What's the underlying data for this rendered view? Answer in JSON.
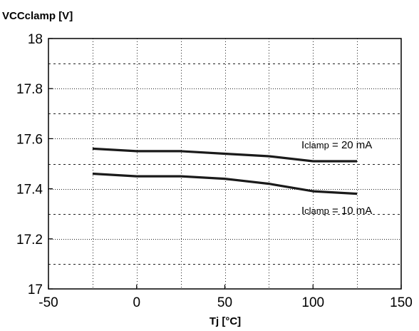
{
  "chart_data": {
    "type": "line",
    "ylabel": "VCCclamp [V]",
    "xlabel": "Tj [°C]",
    "xlim": [
      -50,
      150
    ],
    "ylim": [
      17,
      18
    ],
    "x_ticks": [
      -50,
      0,
      50,
      100,
      150
    ],
    "x_tick_labels": [
      "-50",
      "0",
      "50",
      "100",
      "150"
    ],
    "y_ticks": [
      17,
      17.2,
      17.4,
      17.6,
      17.8,
      18
    ],
    "y_tick_labels": [
      "17",
      "17.2",
      "17.4",
      "17.6",
      "17.8",
      "18"
    ],
    "grid": true,
    "series": [
      {
        "name": "Iclamp = 20 mA",
        "x": [
          -25,
          0,
          25,
          50,
          75,
          100,
          125
        ],
        "values": [
          17.56,
          17.55,
          17.55,
          17.54,
          17.53,
          17.51,
          17.51
        ]
      },
      {
        "name": "Iclamp = 10 mA",
        "x": [
          -25,
          0,
          25,
          50,
          75,
          100,
          125
        ],
        "values": [
          17.46,
          17.45,
          17.45,
          17.44,
          17.42,
          17.39,
          17.38
        ]
      }
    ],
    "annotations": [
      {
        "label_main": "I",
        "label_sub": "clamp",
        "label_rest": " = 20 mA"
      },
      {
        "label_main": "I",
        "label_sub": "clamp",
        "label_rest": " = 10 mA"
      }
    ],
    "line_color": "#1a1a1a"
  }
}
